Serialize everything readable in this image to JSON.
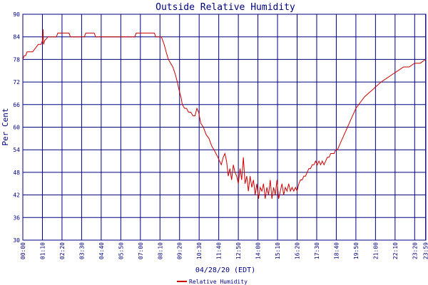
{
  "chart_data": {
    "type": "line",
    "title": "Outside Relative Humidity",
    "xlabel": "04/28/20 (EDT)",
    "ylabel": "Per Cent",
    "ylim": [
      30,
      90
    ],
    "yticks": [
      "30",
      "36",
      "42",
      "48",
      "54",
      "60",
      "66",
      "72",
      "78",
      "84",
      "90"
    ],
    "xlim": [
      0,
      1440
    ],
    "xticks": [
      {
        "label": "00:00",
        "t": 0
      },
      {
        "label": "01:10",
        "t": 70
      },
      {
        "label": "02:20",
        "t": 140
      },
      {
        "label": "03:30",
        "t": 210
      },
      {
        "label": "04:40",
        "t": 280
      },
      {
        "label": "05:50",
        "t": 350
      },
      {
        "label": "07:00",
        "t": 420
      },
      {
        "label": "08:10",
        "t": 490
      },
      {
        "label": "09:20",
        "t": 560
      },
      {
        "label": "10:30",
        "t": 630
      },
      {
        "label": "11:40",
        "t": 700
      },
      {
        "label": "12:50",
        "t": 770
      },
      {
        "label": "14:00",
        "t": 840
      },
      {
        "label": "15:10",
        "t": 910
      },
      {
        "label": "16:20",
        "t": 980
      },
      {
        "label": "17:30",
        "t": 1050
      },
      {
        "label": "18:40",
        "t": 1120
      },
      {
        "label": "19:50",
        "t": 1190
      },
      {
        "label": "21:00",
        "t": 1260
      },
      {
        "label": "22:10",
        "t": 1330
      },
      {
        "label": "23:20",
        "t": 1400
      },
      {
        "label": "23:59",
        "t": 1439
      }
    ],
    "grid": true,
    "legend_position": "bottom-center",
    "series": [
      {
        "name": "Relative Humidity",
        "color": "#cc0000",
        "points": [
          [
            0,
            78
          ],
          [
            5,
            79
          ],
          [
            10,
            79
          ],
          [
            15,
            80
          ],
          [
            35,
            80
          ],
          [
            45,
            81
          ],
          [
            55,
            82
          ],
          [
            65,
            82
          ],
          [
            70,
            83
          ],
          [
            72,
            86
          ],
          [
            74,
            82
          ],
          [
            78,
            83
          ],
          [
            90,
            84
          ],
          [
            120,
            84
          ],
          [
            125,
            85
          ],
          [
            165,
            85
          ],
          [
            170,
            84
          ],
          [
            220,
            84
          ],
          [
            225,
            85
          ],
          [
            255,
            85
          ],
          [
            260,
            84
          ],
          [
            400,
            84
          ],
          [
            405,
            85
          ],
          [
            470,
            85
          ],
          [
            475,
            84
          ],
          [
            495,
            84
          ],
          [
            505,
            82
          ],
          [
            512,
            80
          ],
          [
            520,
            78
          ],
          [
            528,
            77
          ],
          [
            536,
            76
          ],
          [
            545,
            74
          ],
          [
            552,
            72
          ],
          [
            558,
            70
          ],
          [
            565,
            68
          ],
          [
            570,
            66
          ],
          [
            578,
            65
          ],
          [
            585,
            65
          ],
          [
            592,
            64
          ],
          [
            600,
            64
          ],
          [
            608,
            63
          ],
          [
            615,
            63
          ],
          [
            622,
            65
          ],
          [
            628,
            64
          ],
          [
            636,
            61
          ],
          [
            645,
            60
          ],
          [
            655,
            58
          ],
          [
            665,
            57
          ],
          [
            675,
            55
          ],
          [
            683,
            54
          ],
          [
            690,
            53
          ],
          [
            697,
            52
          ],
          [
            703,
            51
          ],
          [
            709,
            50
          ],
          [
            716,
            52
          ],
          [
            722,
            53
          ],
          [
            728,
            51
          ],
          [
            734,
            47
          ],
          [
            740,
            49
          ],
          [
            746,
            46
          ],
          [
            752,
            50
          ],
          [
            758,
            48
          ],
          [
            764,
            47
          ],
          [
            770,
            45
          ],
          [
            776,
            49
          ],
          [
            782,
            46
          ],
          [
            788,
            52
          ],
          [
            794,
            45
          ],
          [
            800,
            47
          ],
          [
            806,
            43
          ],
          [
            812,
            47
          ],
          [
            818,
            44
          ],
          [
            824,
            46
          ],
          [
            830,
            42
          ],
          [
            836,
            45
          ],
          [
            842,
            41
          ],
          [
            848,
            44
          ],
          [
            854,
            43
          ],
          [
            860,
            45
          ],
          [
            866,
            41
          ],
          [
            872,
            44
          ],
          [
            878,
            42
          ],
          [
            884,
            46
          ],
          [
            890,
            41
          ],
          [
            896,
            44
          ],
          [
            902,
            42
          ],
          [
            908,
            46
          ],
          [
            914,
            41
          ],
          [
            920,
            43
          ],
          [
            926,
            45
          ],
          [
            932,
            42
          ],
          [
            938,
            44
          ],
          [
            944,
            43
          ],
          [
            950,
            45
          ],
          [
            956,
            43
          ],
          [
            962,
            44
          ],
          [
            968,
            43
          ],
          [
            974,
            44
          ],
          [
            980,
            43
          ],
          [
            986,
            45
          ],
          [
            992,
            46
          ],
          [
            998,
            46
          ],
          [
            1004,
            47
          ],
          [
            1010,
            47
          ],
          [
            1016,
            48
          ],
          [
            1022,
            49
          ],
          [
            1028,
            49
          ],
          [
            1034,
            50
          ],
          [
            1040,
            50
          ],
          [
            1046,
            51
          ],
          [
            1052,
            50
          ],
          [
            1058,
            51
          ],
          [
            1064,
            50
          ],
          [
            1070,
            51
          ],
          [
            1076,
            50
          ],
          [
            1082,
            51
          ],
          [
            1088,
            52
          ],
          [
            1094,
            52
          ],
          [
            1100,
            53
          ],
          [
            1106,
            53
          ],
          [
            1112,
            53
          ],
          [
            1118,
            54
          ],
          [
            1124,
            54
          ],
          [
            1130,
            55
          ],
          [
            1136,
            56
          ],
          [
            1142,
            57
          ],
          [
            1148,
            58
          ],
          [
            1154,
            59
          ],
          [
            1160,
            60
          ],
          [
            1166,
            61
          ],
          [
            1172,
            62
          ],
          [
            1178,
            63
          ],
          [
            1184,
            64
          ],
          [
            1190,
            65
          ],
          [
            1200,
            66
          ],
          [
            1210,
            67
          ],
          [
            1220,
            68
          ],
          [
            1235,
            69
          ],
          [
            1250,
            70
          ],
          [
            1265,
            71
          ],
          [
            1280,
            72
          ],
          [
            1300,
            73
          ],
          [
            1320,
            74
          ],
          [
            1340,
            75
          ],
          [
            1360,
            76
          ],
          [
            1380,
            76
          ],
          [
            1400,
            77
          ],
          [
            1420,
            77
          ],
          [
            1439,
            78
          ]
        ]
      }
    ]
  }
}
